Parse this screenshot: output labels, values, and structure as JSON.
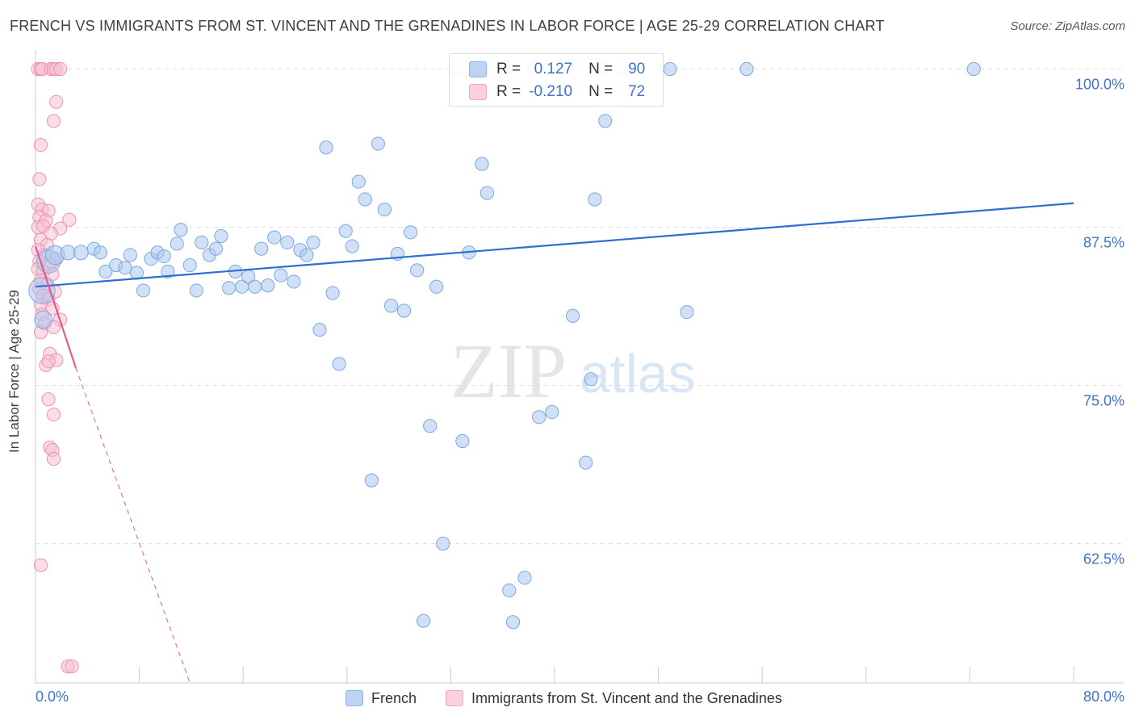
{
  "title": "FRENCH VS IMMIGRANTS FROM ST. VINCENT AND THE GRENADINES IN LABOR FORCE | AGE 25-29 CORRELATION CHART",
  "source": "Source: ZipAtlas.com",
  "watermark": {
    "zip": "ZIP",
    "atlas": "atlas"
  },
  "legend": {
    "r_label": "R =",
    "n_label": "N =",
    "series": [
      {
        "r": "0.127",
        "n": "90"
      },
      {
        "r": "-0.210",
        "n": "72"
      }
    ]
  },
  "bottom_legend": {
    "french": "French",
    "immigrants": "Immigrants from St. Vincent and the Grenadines"
  },
  "colors": {
    "french": "#8fb4e8",
    "french_line": "#2d6fd0",
    "immigrants": "#f4a6bf",
    "immigrants_line": "#e85a8c",
    "grid": "#dde1e6",
    "axis_text": "#3f73c7"
  },
  "chart_data": {
    "type": "scatter",
    "title": "FRENCH VS IMMIGRANTS FROM ST. VINCENT AND THE GRENADINES IN LABOR FORCE | AGE 25-29 CORRELATION CHART",
    "xlabel": "",
    "ylabel": "In Labor Force | Age 25-29",
    "xlim": [
      0,
      80
    ],
    "ylim": [
      51.5,
      101.5
    ],
    "x_tick_labels": [
      "0.0%",
      "80.0%"
    ],
    "y_ticks": [
      {
        "value": 100.0,
        "label": "100.0%"
      },
      {
        "value": 87.5,
        "label": "87.5%"
      },
      {
        "value": 75.0,
        "label": "75.0%"
      },
      {
        "value": 62.5,
        "label": "62.5%"
      }
    ],
    "grid": true,
    "series": [
      {
        "name": "French",
        "r": 0.127,
        "n": 90,
        "trend": {
          "x0": 0.0,
          "y0": 82.8,
          "x1": 80.0,
          "y1": 89.4
        },
        "points": [
          [
            0.5,
            82.5,
            1.8
          ],
          [
            0.6,
            80.2,
            1.2
          ],
          [
            1.0,
            84.8,
            1.6
          ],
          [
            1.5,
            85.3,
            1.3
          ],
          [
            2.5,
            85.5,
            1.0
          ],
          [
            3.5,
            85.5,
            1.0
          ],
          [
            4.5,
            85.8,
            0.9
          ],
          [
            5.0,
            85.5,
            0.9
          ],
          [
            5.4,
            84.0,
            0.9
          ],
          [
            6.2,
            84.5,
            0.9
          ],
          [
            6.9,
            84.3,
            0.9
          ],
          [
            7.3,
            85.3,
            0.9
          ],
          [
            7.8,
            83.9,
            0.9
          ],
          [
            8.3,
            82.5,
            0.9
          ],
          [
            8.9,
            85.0,
            0.9
          ],
          [
            9.4,
            85.5,
            0.9
          ],
          [
            9.9,
            85.2,
            0.9
          ],
          [
            10.2,
            84.0,
            0.9
          ],
          [
            10.9,
            86.2,
            0.9
          ],
          [
            11.2,
            87.3,
            0.9
          ],
          [
            11.9,
            84.5,
            0.9
          ],
          [
            12.4,
            82.5,
            0.9
          ],
          [
            12.8,
            86.3,
            0.9
          ],
          [
            13.4,
            85.3,
            0.9
          ],
          [
            13.9,
            85.8,
            0.9
          ],
          [
            14.3,
            86.8,
            0.9
          ],
          [
            14.9,
            82.7,
            0.9
          ],
          [
            15.4,
            84.0,
            0.9
          ],
          [
            15.9,
            82.8,
            0.9
          ],
          [
            16.4,
            83.6,
            0.9
          ],
          [
            16.9,
            82.8,
            0.9
          ],
          [
            17.4,
            85.8,
            0.9
          ],
          [
            17.9,
            82.9,
            0.9
          ],
          [
            18.4,
            86.7,
            0.9
          ],
          [
            18.9,
            83.7,
            0.9
          ],
          [
            19.4,
            86.3,
            0.9
          ],
          [
            19.9,
            83.2,
            0.9
          ],
          [
            20.4,
            85.7,
            0.9
          ],
          [
            20.9,
            85.3,
            0.9
          ],
          [
            21.4,
            86.3,
            0.9
          ],
          [
            21.9,
            79.4,
            0.9
          ],
          [
            22.4,
            93.8,
            0.9
          ],
          [
            22.9,
            82.3,
            0.9
          ],
          [
            23.4,
            76.7,
            0.9
          ],
          [
            23.9,
            87.2,
            0.9
          ],
          [
            24.4,
            86.0,
            0.9
          ],
          [
            24.9,
            91.1,
            0.9
          ],
          [
            25.4,
            89.7,
            0.9
          ],
          [
            25.9,
            67.5,
            0.9
          ],
          [
            26.4,
            94.1,
            0.9
          ],
          [
            26.9,
            88.9,
            0.9
          ],
          [
            27.4,
            81.3,
            0.9
          ],
          [
            27.9,
            85.4,
            0.9
          ],
          [
            28.4,
            80.9,
            0.9
          ],
          [
            28.9,
            87.1,
            0.9
          ],
          [
            29.4,
            84.1,
            0.9
          ],
          [
            29.9,
            56.4,
            0.9
          ],
          [
            30.4,
            71.8,
            0.9
          ],
          [
            30.9,
            82.8,
            0.9
          ],
          [
            31.4,
            62.5,
            0.9
          ],
          [
            32.9,
            70.6,
            0.9
          ],
          [
            33.4,
            85.5,
            0.9
          ],
          [
            34.4,
            92.5,
            0.9
          ],
          [
            34.8,
            90.2,
            0.9
          ],
          [
            36.5,
            58.8,
            0.9
          ],
          [
            36.8,
            56.3,
            0.9
          ],
          [
            37.7,
            59.8,
            0.9
          ],
          [
            38.8,
            72.5,
            0.9
          ],
          [
            39.8,
            72.9,
            0.9
          ],
          [
            41.4,
            80.5,
            0.9
          ],
          [
            42.4,
            68.9,
            0.9
          ],
          [
            42.8,
            75.5,
            0.9
          ],
          [
            43.1,
            89.7,
            0.9
          ],
          [
            43.9,
            95.9,
            0.9
          ],
          [
            50.2,
            80.8,
            0.9
          ],
          [
            32.4,
            100.0,
            0.9
          ],
          [
            38.4,
            100.0,
            0.9
          ],
          [
            43.6,
            100.0,
            0.9
          ],
          [
            45.4,
            100.0,
            0.9
          ],
          [
            48.9,
            100.0,
            0.9
          ],
          [
            54.8,
            100.0,
            0.9
          ],
          [
            72.3,
            100.0,
            0.9
          ]
        ]
      },
      {
        "name": "Immigrants from St. Vincent and the Grenadines",
        "r": -0.21,
        "n": 72,
        "trend": {
          "x0": 0.0,
          "y0": 86.0,
          "x1": 3.1,
          "y1": 76.4,
          "dash_x1": 11.9,
          "dash_y1": 51.5
        },
        "points": [
          [
            0.2,
            100.0,
            0.9
          ],
          [
            0.4,
            100.0,
            0.9
          ],
          [
            0.5,
            100.0,
            0.9
          ],
          [
            1.2,
            100.0,
            0.9
          ],
          [
            1.4,
            100.0,
            0.9
          ],
          [
            1.6,
            100.0,
            0.9
          ],
          [
            1.9,
            100.0,
            0.9
          ],
          [
            1.6,
            97.4,
            0.9
          ],
          [
            1.4,
            95.9,
            0.9
          ],
          [
            0.4,
            94.0,
            0.9
          ],
          [
            0.3,
            91.3,
            0.9
          ],
          [
            0.2,
            89.3,
            0.9
          ],
          [
            0.5,
            88.9,
            0.9
          ],
          [
            1.0,
            88.8,
            0.9
          ],
          [
            0.3,
            88.3,
            0.9
          ],
          [
            0.8,
            88.0,
            0.9
          ],
          [
            2.6,
            88.1,
            0.9
          ],
          [
            0.2,
            87.5,
            0.9
          ],
          [
            0.6,
            87.6,
            0.9
          ],
          [
            1.9,
            87.4,
            0.9
          ],
          [
            1.2,
            87.0,
            0.9
          ],
          [
            0.4,
            86.5,
            0.9
          ],
          [
            0.9,
            86.1,
            0.9
          ],
          [
            0.2,
            85.7,
            0.9
          ],
          [
            0.7,
            85.3,
            0.9
          ],
          [
            1.6,
            85.0,
            0.9
          ],
          [
            0.3,
            84.8,
            0.9
          ],
          [
            1.1,
            84.6,
            0.9
          ],
          [
            0.2,
            84.2,
            0.9
          ],
          [
            0.6,
            84.0,
            0.9
          ],
          [
            1.3,
            83.8,
            0.9
          ],
          [
            0.4,
            83.3,
            0.9
          ],
          [
            0.9,
            83.0,
            0.9
          ],
          [
            0.3,
            82.6,
            0.9
          ],
          [
            1.5,
            82.4,
            0.9
          ],
          [
            0.6,
            82.1,
            0.9
          ],
          [
            1.0,
            81.8,
            0.9
          ],
          [
            0.4,
            81.4,
            0.9
          ],
          [
            1.3,
            81.1,
            0.9
          ],
          [
            0.5,
            80.6,
            0.9
          ],
          [
            1.9,
            80.2,
            0.9
          ],
          [
            0.7,
            79.9,
            0.9
          ],
          [
            1.4,
            79.6,
            0.9
          ],
          [
            0.4,
            79.2,
            0.9
          ],
          [
            1.1,
            77.5,
            0.9
          ],
          [
            1.6,
            77.0,
            0.9
          ],
          [
            0.8,
            76.6,
            0.9
          ],
          [
            1.0,
            76.9,
            0.9
          ],
          [
            1.0,
            73.9,
            0.9
          ],
          [
            1.4,
            72.7,
            0.9
          ],
          [
            1.1,
            70.1,
            0.9
          ],
          [
            1.3,
            69.9,
            0.9
          ],
          [
            1.4,
            69.2,
            0.9
          ],
          [
            0.4,
            60.8,
            0.9
          ],
          [
            2.5,
            52.8,
            0.9
          ],
          [
            2.8,
            52.8,
            0.9
          ]
        ]
      }
    ]
  }
}
